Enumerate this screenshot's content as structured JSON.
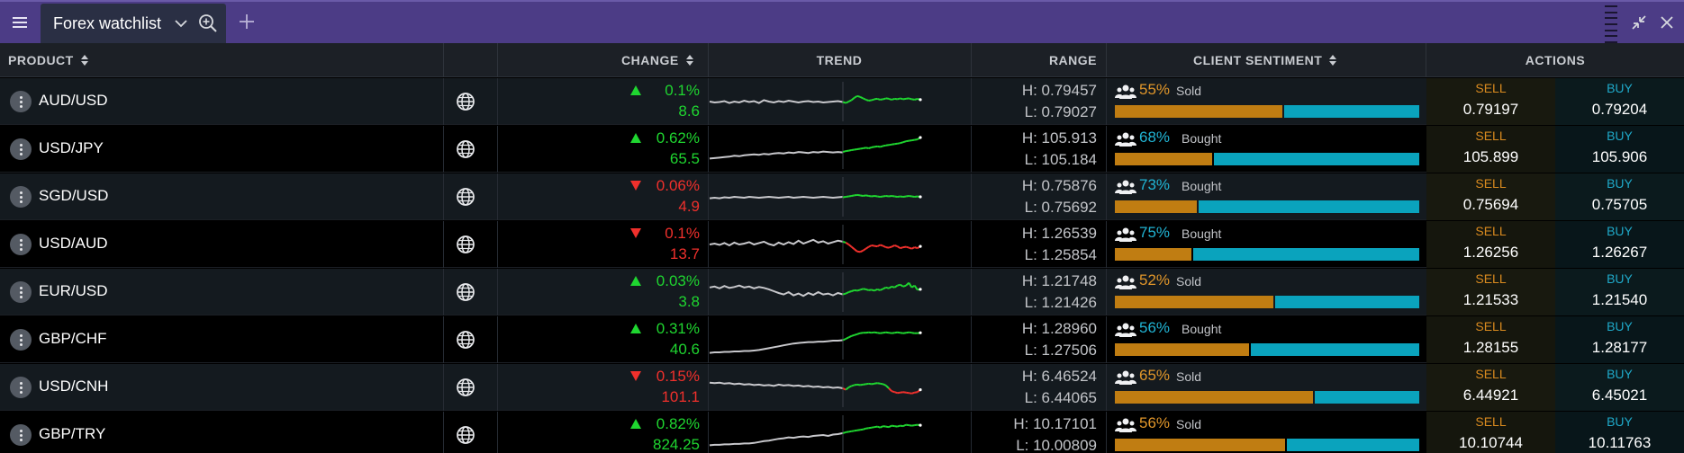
{
  "window": {
    "tab_title": "Forex watchlist",
    "icons": {
      "menu": "hamburger-icon",
      "dropdown": "chevron-down-icon",
      "zoom": "zoom-in-icon",
      "add": "plus-icon",
      "minimize": "compress-icon",
      "close": "close-icon"
    }
  },
  "colors": {
    "topbar": "#4c3c86",
    "up": "#1fd630",
    "down": "#f0302c",
    "sold": "#e0962a",
    "bought": "#21b4d4",
    "sell_bar": "#c07d12",
    "buy_bar": "#0aa3bd"
  },
  "columns": {
    "product": "PRODUCT",
    "change": "CHANGE",
    "trend": "TREND",
    "range": "RANGE",
    "sentiment": "CLIENT SENTIMENT",
    "actions": "ACTIONS"
  },
  "rows": [
    {
      "product": "AUD/USD",
      "dir": "up",
      "change_pct": "0.1%",
      "change_pts": "8.6",
      "high": "H: 0.79457",
      "low": "L: 0.79027",
      "sentiment_pct": "55%",
      "sentiment_label": "Sold",
      "sentiment_sold_fraction": 0.55,
      "sell_label": "SELL",
      "sell": "0.79197",
      "buy_label": "BUY",
      "buy": "0.79204",
      "trend": {
        "pre": [
          50,
          52,
          51,
          49,
          53,
          50,
          52,
          48,
          51,
          49,
          53,
          47,
          50,
          52,
          49,
          51,
          48,
          50,
          52,
          50,
          49,
          51,
          50,
          52,
          51,
          50,
          49,
          51
        ],
        "post": [
          51,
          53,
          50,
          47,
          42,
          38,
          40,
          43,
          46,
          48,
          47,
          45,
          44,
          46,
          45,
          43,
          44,
          46,
          44,
          45,
          43,
          45,
          44,
          43,
          45,
          46,
          44,
          46
        ],
        "end": "up"
      }
    },
    {
      "product": "USD/JPY",
      "dir": "up",
      "change_pct": "0.62%",
      "change_pts": "65.5",
      "high": "H: 105.913",
      "low": "L: 105.184",
      "sentiment_pct": "68%",
      "sentiment_label": "Bought",
      "sentiment_sold_fraction": 0.32,
      "sell_label": "SELL",
      "sell": "105.899",
      "buy_label": "BUY",
      "buy": "105.906",
      "trend": {
        "pre": [
          70,
          69,
          68,
          67,
          66,
          64,
          65,
          63,
          62,
          61,
          62,
          60,
          61,
          59,
          58,
          59,
          57,
          58,
          56,
          57,
          58,
          56,
          57,
          55,
          56,
          57,
          56,
          57
        ],
        "post": [
          56,
          54,
          53,
          52,
          51,
          50,
          49,
          48,
          47,
          48,
          46,
          45,
          44,
          45,
          43,
          42,
          41,
          40,
          39,
          38,
          37,
          35,
          33,
          32,
          31,
          30,
          29,
          25
        ],
        "end": "up"
      }
    },
    {
      "product": "SGD/USD",
      "dir": "down",
      "change_pct": "0.06%",
      "change_pts": "4.9",
      "high": "H: 0.75876",
      "low": "L: 0.75692",
      "sentiment_pct": "73%",
      "sentiment_label": "Bought",
      "sentiment_sold_fraction": 0.27,
      "sell_label": "SELL",
      "sell": "0.75694",
      "buy_label": "BUY",
      "buy": "0.75705",
      "trend": {
        "pre": [
          53,
          52,
          53,
          51,
          52,
          50,
          51,
          52,
          50,
          51,
          52,
          51,
          50,
          51,
          52,
          51,
          50,
          52,
          51,
          50,
          51,
          52,
          51,
          50,
          51,
          52,
          51,
          50
        ],
        "post": [
          51,
          50,
          49,
          48,
          47,
          46,
          47,
          48,
          47,
          48,
          49,
          48,
          49,
          50,
          49,
          48,
          49,
          48,
          49,
          50,
          49,
          50,
          49,
          48,
          49,
          50,
          49,
          50
        ],
        "end": "up"
      }
    },
    {
      "product": "USD/AUD",
      "dir": "down",
      "change_pct": "0.1%",
      "change_pts": "13.7",
      "high": "H: 1.26539",
      "low": "L: 1.25854",
      "sentiment_pct": "75%",
      "sentiment_label": "Bought",
      "sentiment_sold_fraction": 0.25,
      "sell_label": "SELL",
      "sell": "1.26256",
      "buy_label": "BUY",
      "buy": "1.26267",
      "trend": {
        "pre": [
          50,
          48,
          51,
          47,
          52,
          46,
          50,
          48,
          45,
          50,
          47,
          44,
          49,
          52,
          46,
          50,
          45,
          49,
          42,
          48,
          44,
          40,
          46,
          43,
          48,
          45,
          42,
          44
        ],
        "post": [
          44,
          46,
          50,
          55,
          60,
          65,
          66,
          63,
          59,
          55,
          52,
          53,
          54,
          51,
          53,
          56,
          57,
          55,
          52,
          54,
          58,
          56,
          55,
          57,
          59,
          56,
          58,
          54
        ],
        "end": "down"
      }
    },
    {
      "product": "EUR/USD",
      "dir": "up",
      "change_pct": "0.03%",
      "change_pts": "3.8",
      "high": "H: 1.21748",
      "low": "L: 1.21426",
      "sentiment_pct": "52%",
      "sentiment_label": "Sold",
      "sentiment_sold_fraction": 0.52,
      "sell_label": "SELL",
      "sell": "1.21533",
      "buy_label": "BUY",
      "buy": "1.21540",
      "trend": {
        "pre": [
          40,
          38,
          42,
          37,
          41,
          39,
          36,
          40,
          38,
          42,
          39,
          41,
          44,
          48,
          52,
          55,
          50,
          57,
          53,
          58,
          52,
          56,
          50,
          55,
          53,
          57,
          52,
          55
        ],
        "post": [
          55,
          53,
          50,
          48,
          46,
          47,
          45,
          43,
          44,
          46,
          45,
          47,
          44,
          46,
          43,
          40,
          42,
          38,
          40,
          36,
          34,
          38,
          36,
          30,
          40,
          36,
          45,
          44
        ],
        "end": "up"
      }
    },
    {
      "product": "GBP/CHF",
      "dir": "up",
      "change_pct": "0.31%",
      "change_pts": "40.6",
      "high": "H: 1.28960",
      "low": "L: 1.27506",
      "sentiment_pct": "56%",
      "sentiment_label": "Bought",
      "sentiment_sold_fraction": 0.44,
      "sell_label": "SELL",
      "sell": "1.28155",
      "buy_label": "BUY",
      "buy": "1.28177",
      "trend": {
        "pre": [
          78,
          77,
          77,
          76,
          76,
          75,
          75,
          74,
          74,
          73,
          72,
          70,
          68,
          66,
          64,
          62,
          60,
          58,
          57,
          56,
          55,
          55,
          54,
          54,
          53,
          52,
          52,
          51
        ],
        "post": [
          51,
          48,
          45,
          42,
          40,
          38,
          36,
          35,
          35,
          34,
          35,
          34,
          35,
          36,
          35,
          34,
          35,
          36,
          35,
          34,
          35,
          36,
          35,
          34,
          35,
          36,
          36,
          35
        ],
        "end": "up"
      }
    },
    {
      "product": "USD/CNH",
      "dir": "down",
      "change_pct": "0.15%",
      "change_pts": "101.1",
      "high": "H: 6.46524",
      "low": "L: 6.44065",
      "sentiment_pct": "65%",
      "sentiment_label": "Sold",
      "sentiment_sold_fraction": 0.65,
      "sell_label": "SELL",
      "sell": "6.44921",
      "buy_label": "BUY",
      "buy": "6.45021",
      "trend": {
        "pre": [
          40,
          41,
          40,
          42,
          41,
          43,
          42,
          44,
          43,
          45,
          44,
          46,
          45,
          47,
          44,
          46,
          45,
          47,
          46,
          48,
          47,
          49,
          48,
          50,
          49,
          51,
          50,
          52
        ],
        "post": [
          52,
          55,
          50,
          47,
          45,
          44,
          45,
          44,
          43,
          42,
          43,
          42,
          41,
          42,
          43,
          46,
          52,
          58,
          60,
          62,
          61,
          60,
          61,
          62,
          63,
          61,
          60,
          55
        ],
        "end": "down"
      }
    },
    {
      "product": "GBP/TRY",
      "dir": "up",
      "change_pct": "0.82%",
      "change_pts": "824.25",
      "high": "H: 10.17101",
      "low": "L: 10.00809",
      "sentiment_pct": "56%",
      "sentiment_label": "Sold",
      "sentiment_sold_fraction": 0.56,
      "sell_label": "SELL",
      "sell": "10.10744",
      "buy_label": "BUY",
      "buy": "10.11763",
      "trend": {
        "pre": [
          72,
          71,
          71,
          70,
          70,
          69,
          69,
          68,
          68,
          67,
          65,
          63,
          62,
          60,
          58,
          57,
          55,
          56,
          54,
          53,
          54,
          52,
          51,
          50,
          52,
          49,
          48,
          46
        ],
        "post": [
          46,
          44,
          43,
          42,
          41,
          40,
          39,
          38,
          36,
          35,
          34,
          33,
          32,
          34,
          31,
          32,
          33,
          30,
          31,
          32,
          30,
          31,
          28,
          29,
          30,
          29,
          28,
          29
        ],
        "end": "up"
      }
    }
  ]
}
